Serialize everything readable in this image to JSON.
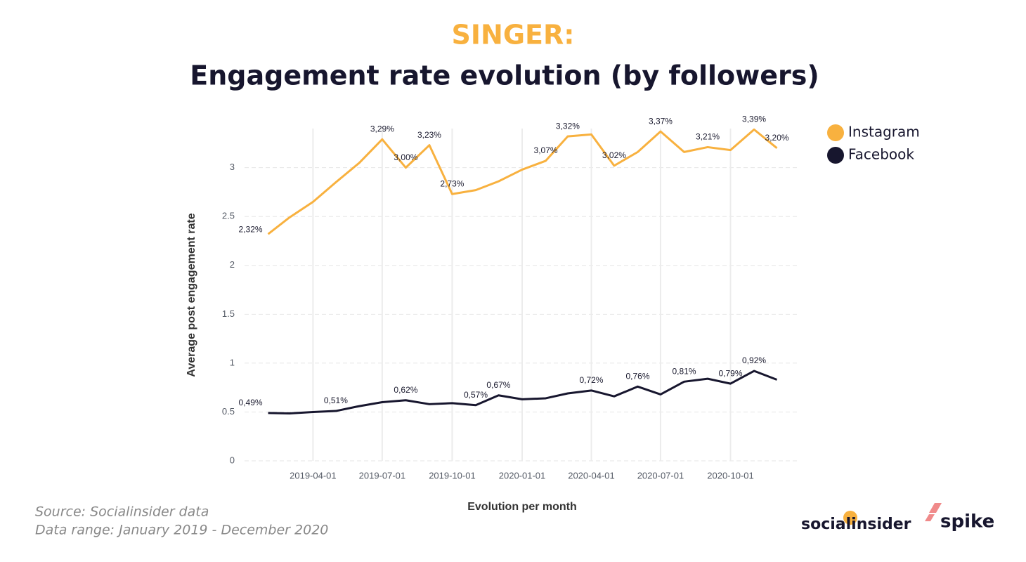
{
  "chart_data": {
    "type": "line",
    "title": "SINGER:",
    "subtitle": "Engagement rate evolution (by followers)",
    "x_label": "Evolution per month",
    "y_label": "Average post engagement rate",
    "x": [
      "2019-02-01",
      "2019-03-01",
      "2019-04-01",
      "2019-05-01",
      "2019-06-01",
      "2019-07-01",
      "2019-08-01",
      "2019-09-01",
      "2019-10-01",
      "2019-11-01",
      "2019-12-01",
      "2020-01-01",
      "2020-02-01",
      "2020-03-01",
      "2020-04-01",
      "2020-05-01",
      "2020-06-01",
      "2020-07-01",
      "2020-08-01",
      "2020-09-01",
      "2020-10-01",
      "2020-11-01",
      "2020-12-01"
    ],
    "series": [
      {
        "name": "Instagram",
        "color": "#f8b13f",
        "values": [
          2.32,
          2.49,
          2.65,
          2.85,
          3.05,
          3.29,
          3.0,
          3.23,
          2.73,
          2.77,
          2.86,
          2.98,
          3.07,
          3.32,
          3.34,
          3.02,
          3.16,
          3.37,
          3.16,
          3.21,
          3.18,
          3.39,
          3.2
        ],
        "value_labels": [
          "2,32%",
          null,
          null,
          null,
          null,
          "3,29%",
          "3,00%",
          "3,23%",
          "2,73%",
          null,
          null,
          null,
          "3,07%",
          "3,32%",
          null,
          "3,02%",
          null,
          "3,37%",
          null,
          "3,21%",
          null,
          "3,39%",
          "3,20%"
        ]
      },
      {
        "name": "Facebook",
        "color": "#17162e",
        "values": [
          0.49,
          0.485,
          0.5,
          0.51,
          0.56,
          0.6,
          0.62,
          0.58,
          0.59,
          0.57,
          0.67,
          0.63,
          0.64,
          0.69,
          0.72,
          0.66,
          0.76,
          0.68,
          0.81,
          0.84,
          0.79,
          0.92,
          0.83
        ],
        "value_labels": [
          "0,49%",
          null,
          null,
          "0,51%",
          null,
          null,
          "0,62%",
          null,
          null,
          "0,57%",
          "0,67%",
          null,
          null,
          null,
          "0,72%",
          null,
          "0,76%",
          null,
          "0,81%",
          null,
          "0,79%",
          "0,92%",
          null
        ]
      }
    ],
    "xlim": [
      "2019-01-01",
      "2020-12-31"
    ],
    "xticks": [
      "2019-04-01",
      "2019-07-01",
      "2019-10-01",
      "2020-01-01",
      "2020-04-01",
      "2020-07-01",
      "2020-10-01"
    ],
    "ylim": [
      0,
      3.4
    ],
    "yticks": [
      0,
      0.5,
      1,
      1.5,
      2,
      2.5,
      3
    ],
    "grid": true,
    "legend": "top-right",
    "source": "Source: Socialinsider data",
    "range_note": "Data range: January 2019 - December 2020",
    "logos": [
      "socialinsider",
      "spike"
    ]
  }
}
